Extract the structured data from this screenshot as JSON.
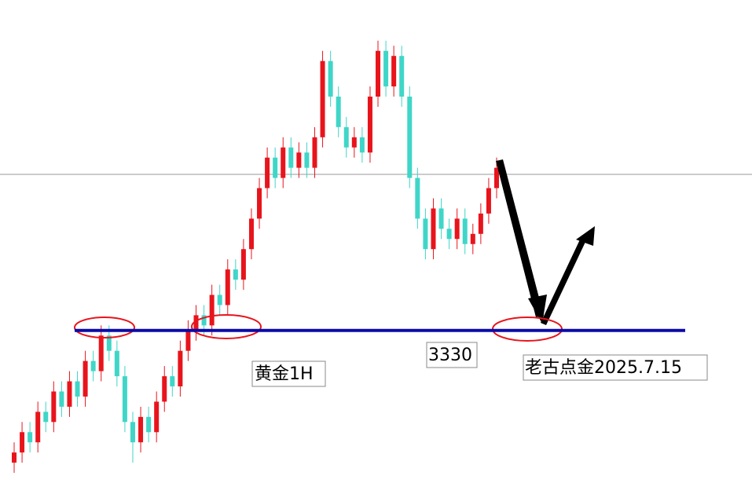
{
  "chart_data": {
    "type": "candlestick",
    "open": [
      3304,
      3306,
      3310,
      3308,
      3314,
      3312,
      3318,
      3315,
      3320,
      3317,
      3324,
      3322,
      3329,
      3326,
      3321,
      3312,
      3308,
      3313,
      3310,
      3316,
      3321,
      3319,
      3326,
      3330,
      3333,
      3331,
      3337,
      3335,
      3342,
      3340,
      3346,
      3352,
      3358,
      3364,
      3360,
      3366,
      3362,
      3365,
      3362,
      3368,
      3383,
      3376,
      3370,
      3366,
      3368,
      3365,
      3376,
      3385,
      3378,
      3384,
      3376,
      3360,
      3352,
      3346,
      3354,
      3350,
      3348,
      3352,
      3347,
      3349,
      3353,
      3358
    ],
    "high": [
      3308,
      3312,
      3312,
      3316,
      3316,
      3320,
      3320,
      3322,
      3322,
      3326,
      3326,
      3331,
      3331,
      3328,
      3323,
      3314,
      3315,
      3315,
      3318,
      3323,
      3323,
      3328,
      3332,
      3335,
      3335,
      3339,
      3339,
      3344,
      3344,
      3348,
      3354,
      3360,
      3366,
      3366,
      3368,
      3368,
      3367,
      3367,
      3370,
      3385,
      3385,
      3378,
      3372,
      3370,
      3370,
      3378,
      3387,
      3387,
      3386,
      3386,
      3378,
      3362,
      3354,
      3356,
      3356,
      3352,
      3354,
      3354,
      3351,
      3355,
      3360,
      3364
    ],
    "low": [
      3302,
      3304,
      3306,
      3306,
      3310,
      3310,
      3313,
      3313,
      3315,
      3315,
      3320,
      3320,
      3324,
      3319,
      3310,
      3304,
      3306,
      3308,
      3308,
      3314,
      3317,
      3317,
      3324,
      3328,
      3329,
      3329,
      3333,
      3333,
      3338,
      3338,
      3344,
      3350,
      3356,
      3358,
      3358,
      3360,
      3360,
      3360,
      3360,
      3366,
      3374,
      3368,
      3364,
      3364,
      3363,
      3363,
      3374,
      3376,
      3376,
      3374,
      3358,
      3350,
      3344,
      3344,
      3348,
      3346,
      3346,
      3345,
      3345,
      3347,
      3351,
      3356
    ],
    "close": [
      3306,
      3310,
      3308,
      3314,
      3312,
      3318,
      3315,
      3320,
      3317,
      3324,
      3322,
      3329,
      3326,
      3321,
      3312,
      3308,
      3313,
      3310,
      3316,
      3321,
      3319,
      3326,
      3330,
      3333,
      3331,
      3337,
      3335,
      3342,
      3340,
      3346,
      3352,
      3358,
      3364,
      3360,
      3366,
      3362,
      3365,
      3362,
      3368,
      3383,
      3376,
      3370,
      3366,
      3368,
      3365,
      3376,
      3385,
      3378,
      3384,
      3376,
      3360,
      3352,
      3346,
      3354,
      3350,
      3348,
      3352,
      3347,
      3349,
      3353,
      3358,
      3362
    ],
    "up_color": "#e8141c",
    "down_color": "#3fd6c8",
    "ylim": [
      3300,
      3395
    ],
    "level": 3330,
    "level_color": "#0a0aa8",
    "annotations": [
      "黄金1H",
      "老古点金2025.7.15"
    ]
  }
}
